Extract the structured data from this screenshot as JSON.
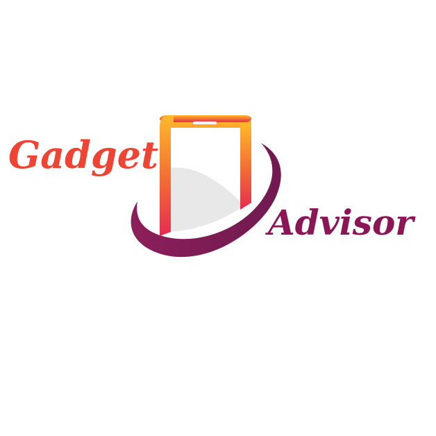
{
  "brand": {
    "word_primary": "Gadget",
    "word_secondary": "Advisor"
  },
  "colors": {
    "primary_text": "#ee4434",
    "secondary_text": "#8b1656",
    "phone_gradient_top": "#ffb92a",
    "phone_gradient_bottom": "#e52b50",
    "swoosh": "#7a1c55",
    "screen_fill": "#e8e8e8"
  },
  "icons": {
    "logo": "smartphone-swoosh-icon"
  }
}
